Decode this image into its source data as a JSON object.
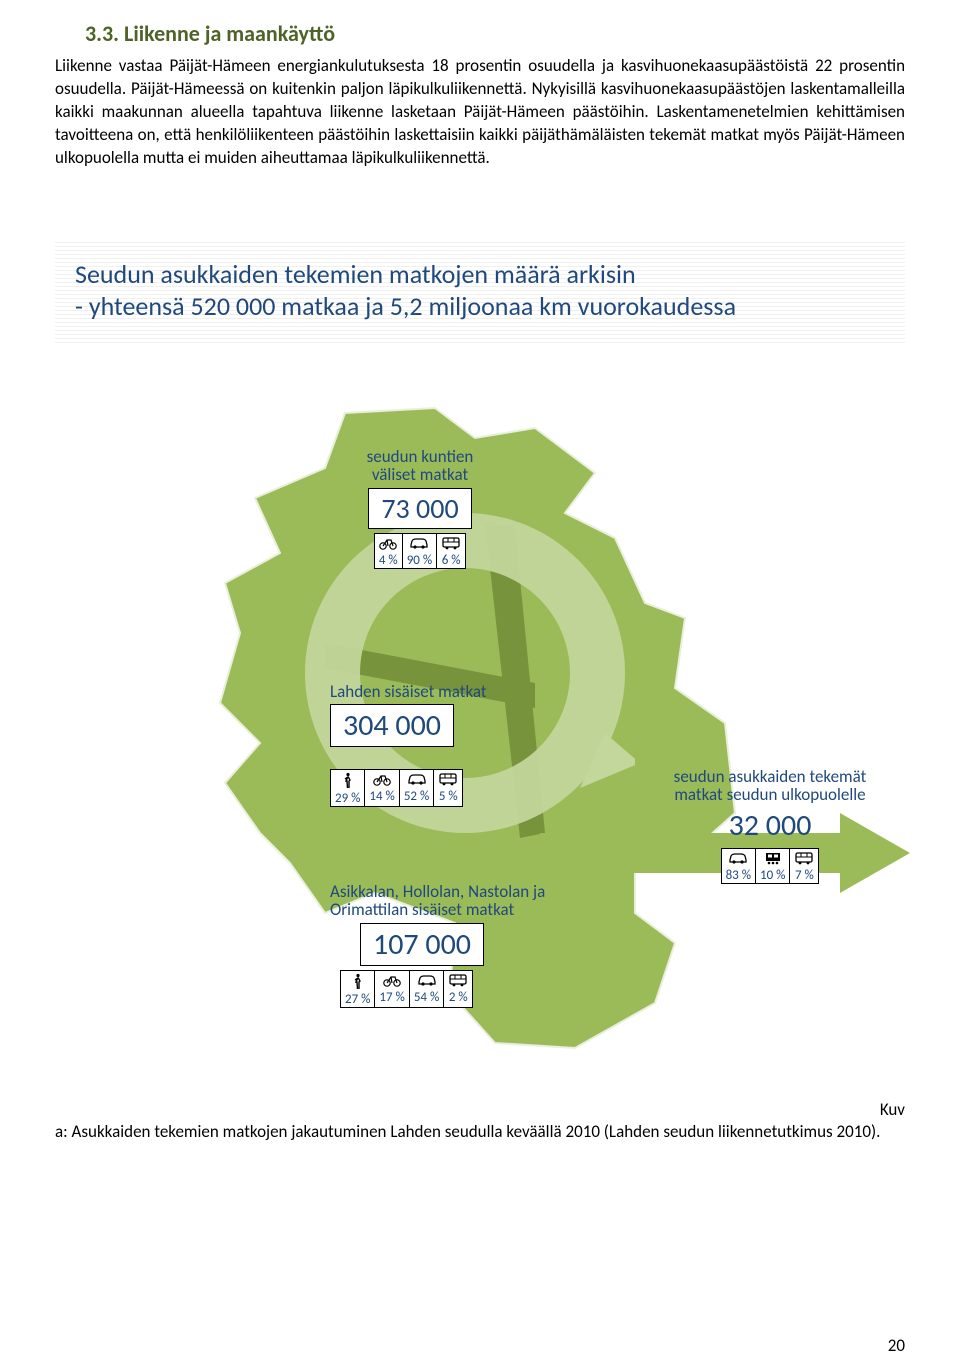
{
  "heading": "3.3. Liikenne ja maankäyttö",
  "paragraph": "Liikenne vastaa Päijät-Hämeen energiankulutuksesta 18 prosentin osuudella ja kasvihuonekaasupäästöistä 22 prosentin osuudella. Päijät-Hämeessä on kuitenkin paljon läpikulkuliikennettä. Nykyisillä kasvihuonekaasupäästöjen laskentamalleilla kaikki maakunnan alueella tapahtuva liikenne lasketaan Päijät-Hämeen päästöihin. Laskentamenetelmien kehittämisen tavoitteena on, että henkilöliikenteen päästöihin laskettaisiin kaikki päijäthämäläisten tekemät matkat myös Päijät-Hämeen ulkopuolella mutta ei muiden aiheuttamaa läpikulkuliikennettä.",
  "callout_line1": "Seudun asukkaiden tekemien matkojen määrä arkisin",
  "callout_line2": "- yhteensä 520 000 matkaa ja 5,2 miljoonaa km vuorokaudessa",
  "colors": {
    "heading": "#4f6228",
    "accent": "#1f497d",
    "map_fill": "#9bbb59",
    "map_dark": "#77933c",
    "ring": "#c3d69b"
  },
  "blocks": {
    "intermunicipal": {
      "label": "seudun kuntien\nväliset matkat",
      "value": "73 000",
      "modes": [
        {
          "icon": "bike",
          "pct": "4 %"
        },
        {
          "icon": "car",
          "pct": "90 %"
        },
        {
          "icon": "bus",
          "pct": "6 %"
        }
      ]
    },
    "lahti_internal": {
      "label": "Lahden sisäiset matkat",
      "value": "304 000",
      "modes": [
        {
          "icon": "walk",
          "pct": "29 %"
        },
        {
          "icon": "bike",
          "pct": "14 %"
        },
        {
          "icon": "car",
          "pct": "52 %"
        },
        {
          "icon": "bus",
          "pct": "5 %"
        }
      ]
    },
    "other_internal": {
      "label": "Asikkalan, Hollolan, Nastolan ja Orimattilan sisäiset matkat",
      "value": "107 000",
      "modes": [
        {
          "icon": "walk",
          "pct": "27 %"
        },
        {
          "icon": "bike",
          "pct": "17 %"
        },
        {
          "icon": "car",
          "pct": "54 %"
        },
        {
          "icon": "bus",
          "pct": "2 %"
        }
      ]
    },
    "external": {
      "label": "seudun asukkaiden tekemät matkat seudun ulkopuolelle",
      "value": "32  000",
      "modes": [
        {
          "icon": "car",
          "pct": "83 %"
        },
        {
          "icon": "train",
          "pct": "10 %"
        },
        {
          "icon": "bus",
          "pct": "7 %"
        }
      ]
    }
  },
  "caption_prefix": "Kuv",
  "caption": "a: Asukkaiden tekemien matkojen jakautuminen Lahden seudulla keväällä 2010 (Lahden seudun liikennetutkimus 2010).",
  "page_number": "20"
}
